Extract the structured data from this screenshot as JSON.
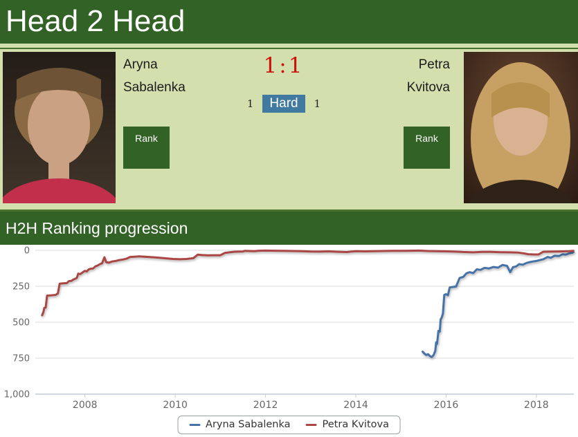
{
  "header": {
    "title": "Head 2 Head"
  },
  "players": {
    "player1": {
      "first": "Aryna",
      "last": "Sabalenka",
      "rank_label": "Rank"
    },
    "player2": {
      "first": "Petra",
      "last": "Kvitova",
      "rank_label": "Rank"
    }
  },
  "score": {
    "value": "1:1"
  },
  "surface": {
    "left_count": "1",
    "label": "Hard",
    "right_count": "1"
  },
  "section": {
    "title": "H2H Ranking progression"
  },
  "colors": {
    "header_green": "#336227",
    "light_green": "#d3dfad",
    "badge_blue": "#417aa0",
    "score_red": "#cc0f0f",
    "series_blue": "#4572a7",
    "series_red": "#aa4643",
    "grid": "#d9d9d9",
    "axis": "#c3ccd8",
    "tick_label": "#666666"
  },
  "chart_data": {
    "type": "line",
    "title": "",
    "xlabel": "",
    "ylabel": "",
    "grid": true,
    "y_inverted": true,
    "legend_position": "bottom",
    "xlim": [
      2006.9,
      2018.83
    ],
    "ylim": [
      0,
      1000
    ],
    "x_ticks": [
      2008,
      2010,
      2012,
      2014,
      2016,
      2018
    ],
    "x_tick_labels": [
      "2008",
      "2010",
      "2012",
      "2014",
      "2016",
      "2018"
    ],
    "y_ticks": [
      0,
      250,
      500,
      750,
      1000
    ],
    "y_tick_labels": [
      "0",
      "250",
      "500",
      "750",
      "1,000"
    ],
    "series": [
      {
        "name": "Aryna Sabalenka",
        "color": "#4572a7",
        "points": [
          [
            2015.48,
            705
          ],
          [
            2015.52,
            718
          ],
          [
            2015.56,
            728
          ],
          [
            2015.6,
            722
          ],
          [
            2015.64,
            735
          ],
          [
            2015.68,
            742
          ],
          [
            2015.72,
            730
          ],
          [
            2015.76,
            700
          ],
          [
            2015.78,
            640
          ],
          [
            2015.8,
            650
          ],
          [
            2015.83,
            560
          ],
          [
            2015.86,
            565
          ],
          [
            2015.88,
            480
          ],
          [
            2015.9,
            470
          ],
          [
            2015.93,
            440
          ],
          [
            2015.96,
            310
          ],
          [
            2016.0,
            305
          ],
          [
            2016.04,
            312
          ],
          [
            2016.08,
            258
          ],
          [
            2016.15,
            255
          ],
          [
            2016.22,
            252
          ],
          [
            2016.3,
            192
          ],
          [
            2016.38,
            185
          ],
          [
            2016.45,
            160
          ],
          [
            2016.52,
            152
          ],
          [
            2016.6,
            158
          ],
          [
            2016.68,
            132
          ],
          [
            2016.76,
            136
          ],
          [
            2016.85,
            122
          ],
          [
            2016.95,
            126
          ],
          [
            2017.05,
            116
          ],
          [
            2017.15,
            120
          ],
          [
            2017.25,
            102
          ],
          [
            2017.35,
            108
          ],
          [
            2017.42,
            152
          ],
          [
            2017.48,
            118
          ],
          [
            2017.55,
            112
          ],
          [
            2017.62,
            96
          ],
          [
            2017.7,
            100
          ],
          [
            2017.78,
            88
          ],
          [
            2017.85,
            82
          ],
          [
            2017.92,
            78
          ],
          [
            2018.0,
            74
          ],
          [
            2018.08,
            68
          ],
          [
            2018.15,
            62
          ],
          [
            2018.25,
            46
          ],
          [
            2018.32,
            52
          ],
          [
            2018.4,
            38
          ],
          [
            2018.5,
            40
          ],
          [
            2018.58,
            28
          ],
          [
            2018.65,
            30
          ],
          [
            2018.72,
            22
          ],
          [
            2018.78,
            18
          ],
          [
            2018.82,
            13
          ]
        ]
      },
      {
        "name": "Petra Kvitova",
        "color": "#aa4643",
        "points": [
          [
            2007.05,
            452
          ],
          [
            2007.08,
            430
          ],
          [
            2007.1,
            400
          ],
          [
            2007.13,
            398
          ],
          [
            2007.16,
            315
          ],
          [
            2007.25,
            313
          ],
          [
            2007.35,
            310
          ],
          [
            2007.4,
            300
          ],
          [
            2007.44,
            232
          ],
          [
            2007.52,
            230
          ],
          [
            2007.6,
            228
          ],
          [
            2007.64,
            215
          ],
          [
            2007.7,
            212
          ],
          [
            2007.74,
            204
          ],
          [
            2007.78,
            198
          ],
          [
            2007.82,
            192
          ],
          [
            2007.85,
            162
          ],
          [
            2007.89,
            166
          ],
          [
            2007.93,
            158
          ],
          [
            2007.97,
            148
          ],
          [
            2008.0,
            143
          ],
          [
            2008.04,
            147
          ],
          [
            2008.08,
            133
          ],
          [
            2008.13,
            128
          ],
          [
            2008.18,
            126
          ],
          [
            2008.23,
            112
          ],
          [
            2008.28,
            106
          ],
          [
            2008.33,
            96
          ],
          [
            2008.38,
            90
          ],
          [
            2008.43,
            48
          ],
          [
            2008.47,
            82
          ],
          [
            2008.53,
            86
          ],
          [
            2008.6,
            78
          ],
          [
            2008.68,
            74
          ],
          [
            2008.76,
            68
          ],
          [
            2008.84,
            64
          ],
          [
            2008.92,
            58
          ],
          [
            2009.0,
            46
          ],
          [
            2009.1,
            44
          ],
          [
            2009.2,
            42
          ],
          [
            2009.35,
            45
          ],
          [
            2009.5,
            48
          ],
          [
            2009.65,
            52
          ],
          [
            2009.8,
            56
          ],
          [
            2009.95,
            60
          ],
          [
            2010.1,
            62
          ],
          [
            2010.25,
            60
          ],
          [
            2010.4,
            55
          ],
          [
            2010.5,
            30
          ],
          [
            2010.6,
            33
          ],
          [
            2010.72,
            35
          ],
          [
            2010.85,
            34
          ],
          [
            2011.0,
            34
          ],
          [
            2011.05,
            26
          ],
          [
            2011.1,
            18
          ],
          [
            2011.2,
            14
          ],
          [
            2011.3,
            10
          ],
          [
            2011.4,
            9
          ],
          [
            2011.5,
            8
          ],
          [
            2011.54,
            4
          ],
          [
            2011.65,
            5
          ],
          [
            2011.75,
            6
          ],
          [
            2011.85,
            3
          ],
          [
            2012.0,
            2
          ],
          [
            2012.2,
            3
          ],
          [
            2012.4,
            4
          ],
          [
            2012.6,
            5
          ],
          [
            2012.8,
            6
          ],
          [
            2013.0,
            8
          ],
          [
            2013.2,
            9
          ],
          [
            2013.4,
            7
          ],
          [
            2013.6,
            10
          ],
          [
            2013.8,
            12
          ],
          [
            2014.0,
            6
          ],
          [
            2014.2,
            7
          ],
          [
            2014.4,
            6
          ],
          [
            2014.6,
            5
          ],
          [
            2014.8,
            4
          ],
          [
            2015.0,
            4
          ],
          [
            2015.2,
            3
          ],
          [
            2015.4,
            2
          ],
          [
            2015.6,
            5
          ],
          [
            2015.8,
            6
          ],
          [
            2016.0,
            7
          ],
          [
            2016.2,
            9
          ],
          [
            2016.4,
            12
          ],
          [
            2016.6,
            14
          ],
          [
            2016.8,
            11
          ],
          [
            2017.0,
            11
          ],
          [
            2017.2,
            13
          ],
          [
            2017.4,
            14
          ],
          [
            2017.6,
            16
          ],
          [
            2017.72,
            21
          ],
          [
            2017.82,
            27
          ],
          [
            2017.95,
            29
          ],
          [
            2018.05,
            29
          ],
          [
            2018.15,
            10
          ],
          [
            2018.3,
            9
          ],
          [
            2018.45,
            8
          ],
          [
            2018.6,
            7
          ],
          [
            2018.72,
            6
          ],
          [
            2018.82,
            4
          ]
        ]
      }
    ]
  }
}
